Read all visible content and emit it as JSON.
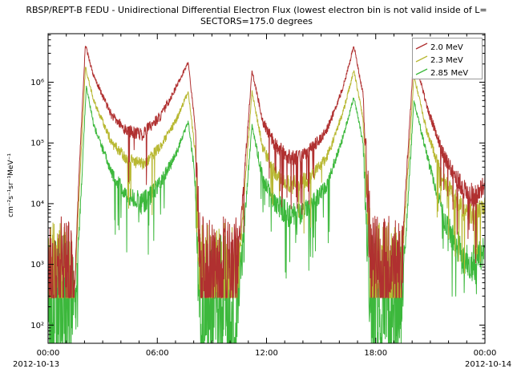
{
  "chart_data": {
    "type": "line",
    "title": "RBSP/REPT-B  FEDU - Unidirectional Differential Electron Flux (lowest electron bin is not valid inside of L=",
    "subtitle": "SECTORS=175.0 degrees",
    "ylabel": "cm⁻²s⁻¹sr⁻¹MeV⁻¹",
    "y_axis": {
      "scale": "log",
      "range_log10": [
        1.7,
        6.8
      ],
      "tick_exponents": [
        2,
        3,
        4,
        5,
        6
      ],
      "tick_labels": [
        "10²",
        "10³",
        "10⁴",
        "10⁵",
        "10⁶"
      ]
    },
    "x_axis": {
      "range_hours": [
        0,
        24
      ],
      "tick_hours": [
        0,
        6,
        12,
        18,
        24
      ],
      "tick_labels": [
        "00:00",
        "06:00",
        "12:00",
        "18:00",
        "00:00"
      ],
      "minor_tick_step_hours": 1,
      "date_left": "2012-10-13",
      "date_right": "2012-10-14"
    },
    "legend": {
      "position": "top-right",
      "entries": [
        "2.0 MeV",
        "2.3 MeV",
        "2.85 MeV"
      ]
    },
    "series": [
      {
        "name": "2.0 MeV",
        "color": "#b03030",
        "floor_log10": 2.45,
        "keypoints": [
          [
            0.0,
            2.9,
            0.9
          ],
          [
            1.3,
            2.9,
            0.9
          ],
          [
            1.45,
            2.5,
            0.1
          ],
          [
            1.7,
            4.5,
            0.05
          ],
          [
            2.05,
            6.62,
            0.03
          ],
          [
            2.5,
            6.1,
            0.04
          ],
          [
            3.5,
            5.45,
            0.07
          ],
          [
            4.3,
            5.2,
            0.1
          ],
          [
            5.2,
            5.15,
            0.12
          ],
          [
            6.2,
            5.45,
            0.08
          ],
          [
            7.0,
            5.9,
            0.05
          ],
          [
            7.7,
            6.33,
            0.03
          ],
          [
            8.1,
            5.2,
            0.05
          ],
          [
            8.35,
            2.9,
            0.9
          ],
          [
            10.35,
            2.9,
            0.9
          ],
          [
            10.55,
            3.5,
            0.15
          ],
          [
            11.2,
            6.2,
            0.03
          ],
          [
            11.8,
            5.35,
            0.08
          ],
          [
            12.5,
            4.95,
            0.12
          ],
          [
            13.3,
            4.75,
            0.15
          ],
          [
            14.3,
            4.85,
            0.12
          ],
          [
            15.3,
            5.2,
            0.08
          ],
          [
            16.2,
            5.9,
            0.05
          ],
          [
            16.8,
            6.6,
            0.03
          ],
          [
            17.3,
            5.8,
            0.05
          ],
          [
            17.75,
            2.9,
            0.9
          ],
          [
            19.35,
            2.9,
            0.9
          ],
          [
            19.55,
            3.8,
            0.1
          ],
          [
            20.1,
            6.48,
            0.03
          ],
          [
            20.8,
            5.6,
            0.06
          ],
          [
            21.8,
            4.75,
            0.12
          ],
          [
            22.8,
            4.25,
            0.18
          ],
          [
            23.5,
            4.1,
            0.2
          ],
          [
            24.0,
            4.35,
            0.15
          ]
        ]
      },
      {
        "name": "2.3 MeV",
        "color": "#b8b832",
        "floor_log10": 2.45,
        "keypoints": [
          [
            0.0,
            2.8,
            0.9
          ],
          [
            1.3,
            2.8,
            0.9
          ],
          [
            1.45,
            2.5,
            0.1
          ],
          [
            1.7,
            4.1,
            0.05
          ],
          [
            2.05,
            6.25,
            0.03
          ],
          [
            2.5,
            5.7,
            0.04
          ],
          [
            3.5,
            5.0,
            0.08
          ],
          [
            4.3,
            4.75,
            0.1
          ],
          [
            5.2,
            4.65,
            0.12
          ],
          [
            6.2,
            4.95,
            0.09
          ],
          [
            7.0,
            5.35,
            0.06
          ],
          [
            7.7,
            5.85,
            0.04
          ],
          [
            8.1,
            4.8,
            0.06
          ],
          [
            8.35,
            2.8,
            0.9
          ],
          [
            10.35,
            2.8,
            0.9
          ],
          [
            10.55,
            3.2,
            0.15
          ],
          [
            11.2,
            5.85,
            0.03
          ],
          [
            11.8,
            4.9,
            0.09
          ],
          [
            12.5,
            4.5,
            0.13
          ],
          [
            13.3,
            4.3,
            0.16
          ],
          [
            14.3,
            4.4,
            0.13
          ],
          [
            15.3,
            4.75,
            0.09
          ],
          [
            16.2,
            5.5,
            0.05
          ],
          [
            16.8,
            6.2,
            0.03
          ],
          [
            17.3,
            5.4,
            0.05
          ],
          [
            17.75,
            2.8,
            0.9
          ],
          [
            19.35,
            2.8,
            0.9
          ],
          [
            19.55,
            3.5,
            0.1
          ],
          [
            20.1,
            6.1,
            0.03
          ],
          [
            20.8,
            5.2,
            0.07
          ],
          [
            21.8,
            4.35,
            0.13
          ],
          [
            22.8,
            3.9,
            0.18
          ],
          [
            23.5,
            3.8,
            0.2
          ],
          [
            24.0,
            4.0,
            0.15
          ]
        ]
      },
      {
        "name": "2.85 MeV",
        "color": "#3cb83c",
        "floor_log10": 1.3,
        "keypoints": [
          [
            0.0,
            2.4,
            1.1
          ],
          [
            1.3,
            2.4,
            1.1
          ],
          [
            1.5,
            2.3,
            0.3
          ],
          [
            1.75,
            3.8,
            0.1
          ],
          [
            2.1,
            5.95,
            0.03
          ],
          [
            2.5,
            5.3,
            0.05
          ],
          [
            3.5,
            4.5,
            0.1
          ],
          [
            4.3,
            4.15,
            0.15
          ],
          [
            5.2,
            4.0,
            0.2
          ],
          [
            6.2,
            4.35,
            0.12
          ],
          [
            7.0,
            4.8,
            0.07
          ],
          [
            7.7,
            5.35,
            0.04
          ],
          [
            8.05,
            4.5,
            0.1
          ],
          [
            8.3,
            2.4,
            1.1
          ],
          [
            10.4,
            2.4,
            1.1
          ],
          [
            10.6,
            3.0,
            0.2
          ],
          [
            11.2,
            5.3,
            0.04
          ],
          [
            11.8,
            4.4,
            0.12
          ],
          [
            12.5,
            4.0,
            0.18
          ],
          [
            13.3,
            3.8,
            0.22
          ],
          [
            14.3,
            3.9,
            0.18
          ],
          [
            15.3,
            4.3,
            0.12
          ],
          [
            16.2,
            5.1,
            0.06
          ],
          [
            16.8,
            5.75,
            0.03
          ],
          [
            17.3,
            5.0,
            0.06
          ],
          [
            17.7,
            2.4,
            1.1
          ],
          [
            19.4,
            2.4,
            1.1
          ],
          [
            19.6,
            3.2,
            0.15
          ],
          [
            20.1,
            5.7,
            0.03
          ],
          [
            20.8,
            4.8,
            0.08
          ],
          [
            21.8,
            3.7,
            0.18
          ],
          [
            22.8,
            3.1,
            0.3
          ],
          [
            23.5,
            3.0,
            0.35
          ],
          [
            24.0,
            3.3,
            0.25
          ]
        ]
      }
    ]
  }
}
